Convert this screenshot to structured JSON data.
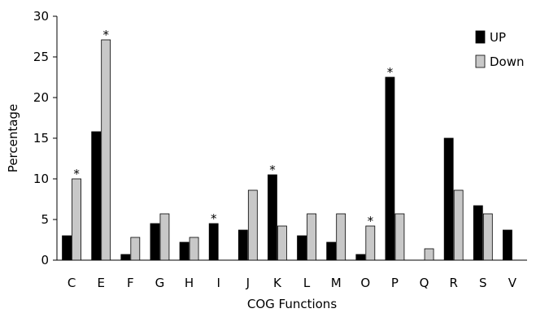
{
  "chart_data": {
    "type": "bar",
    "xlabel": "COG Functions",
    "ylabel": "Percentage",
    "ylim": [
      0,
      30
    ],
    "yticks": [
      "0",
      "5",
      "10",
      "15",
      "20",
      "25",
      "30"
    ],
    "grid": false,
    "legend_position": "top-right",
    "categories": [
      "C",
      "E",
      "F",
      "G",
      "H",
      "I",
      "J",
      "K",
      "L",
      "M",
      "O",
      "P",
      "Q",
      "R",
      "S",
      "V"
    ],
    "series": [
      {
        "name": "UP",
        "color": "#000000",
        "values": [
          3.0,
          15.8,
          0.7,
          4.5,
          2.2,
          4.5,
          3.7,
          10.5,
          3.0,
          2.2,
          0.7,
          22.5,
          0,
          15.0,
          6.7,
          3.7
        ]
      },
      {
        "name": "Down",
        "color": "#c8c8c8",
        "values": [
          10.0,
          27.1,
          2.8,
          5.7,
          2.8,
          0,
          8.6,
          4.2,
          5.7,
          5.7,
          4.2,
          5.7,
          1.4,
          8.6,
          5.7,
          0
        ]
      }
    ],
    "annotations": [
      {
        "category": "C",
        "series": "Down",
        "text": "*"
      },
      {
        "category": "E",
        "series": "Down",
        "text": "*"
      },
      {
        "category": "I",
        "series": "UP",
        "text": "*"
      },
      {
        "category": "K",
        "series": "UP",
        "text": "*"
      },
      {
        "category": "O",
        "series": "Down",
        "text": "*"
      },
      {
        "category": "P",
        "series": "UP",
        "text": "*"
      }
    ]
  }
}
